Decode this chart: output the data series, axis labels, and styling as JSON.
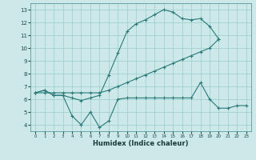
{
  "xlabel": "Humidex (Indice chaleur)",
  "xlim": [
    -0.5,
    23.5
  ],
  "ylim": [
    3.5,
    13.5
  ],
  "xticks": [
    0,
    1,
    2,
    3,
    4,
    5,
    6,
    7,
    8,
    9,
    10,
    11,
    12,
    13,
    14,
    15,
    16,
    17,
    18,
    19,
    20,
    21,
    22,
    23
  ],
  "yticks": [
    4,
    5,
    6,
    7,
    8,
    9,
    10,
    11,
    12,
    13
  ],
  "line_color": "#2a7a7a",
  "bg_color": "#cce8e8",
  "grid_color": "#99cccc",
  "line1_x": [
    0,
    1,
    2,
    3,
    4,
    5,
    6,
    7,
    8,
    9,
    10,
    11,
    12,
    13,
    14,
    15,
    16,
    17,
    18,
    19,
    20
  ],
  "line1_y": [
    6.5,
    6.7,
    6.3,
    6.3,
    6.1,
    5.9,
    6.1,
    6.3,
    7.9,
    9.6,
    11.3,
    11.9,
    12.2,
    12.6,
    13.0,
    12.8,
    12.3,
    12.2,
    12.3,
    11.7,
    10.7
  ],
  "line2_x": [
    0,
    1,
    2,
    3,
    4,
    5,
    6,
    7,
    8,
    9,
    10,
    11,
    12,
    13,
    14,
    15,
    16,
    17,
    18,
    19,
    20
  ],
  "line2_y": [
    6.5,
    6.5,
    6.5,
    6.5,
    6.5,
    6.5,
    6.5,
    6.5,
    6.7,
    7.0,
    7.3,
    7.6,
    7.9,
    8.2,
    8.5,
    8.8,
    9.1,
    9.4,
    9.7,
    10.0,
    10.7
  ],
  "line3_x": [
    0,
    1,
    2,
    3,
    4,
    5,
    6,
    7,
    8,
    9,
    10,
    11,
    12,
    13,
    14,
    15,
    16,
    17,
    18,
    19,
    20,
    21,
    22,
    23
  ],
  "line3_y": [
    6.5,
    6.7,
    6.3,
    6.3,
    4.7,
    4.0,
    5.0,
    3.8,
    4.3,
    6.0,
    6.1,
    6.1,
    6.1,
    6.1,
    6.1,
    6.1,
    6.1,
    6.1,
    7.3,
    6.0,
    5.3,
    5.3,
    5.5,
    5.5
  ]
}
